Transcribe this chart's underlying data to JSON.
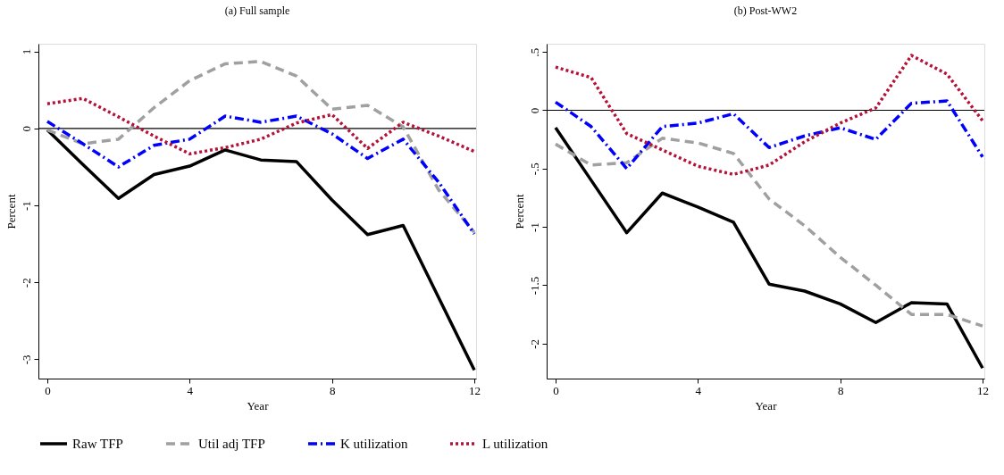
{
  "chart_data": [
    {
      "type": "line",
      "title": "(a) Full sample",
      "xlabel": "Year",
      "ylabel": "Percent",
      "xlim": [
        -0.25,
        12.05
      ],
      "xticks": [
        0,
        4,
        8,
        12
      ],
      "ylim": [
        -3.25,
        1.1
      ],
      "yticks": [
        1,
        0,
        -1,
        -2,
        -3
      ],
      "grid": false,
      "legend": "bottom",
      "marker": "none",
      "x": [
        0,
        1,
        2,
        3,
        4,
        5,
        6,
        7,
        8,
        9,
        10,
        11,
        12
      ],
      "ref_lines": [
        {
          "axis": "y",
          "value": 0,
          "color": "#000000",
          "line_style": "solid"
        }
      ],
      "series": [
        {
          "name": "Raw TFP",
          "color": "#000000",
          "line_style": "solid",
          "values": [
            -0.02,
            -0.47,
            -0.91,
            -0.6,
            -0.49,
            -0.28,
            -0.41,
            -0.43,
            -0.93,
            -1.38,
            -1.26,
            -2.2,
            -3.14
          ]
        },
        {
          "name": "Util adj TFP",
          "color": "#a0a0a0",
          "line_style": "dashed",
          "values": [
            -0.02,
            -0.2,
            -0.14,
            0.27,
            0.62,
            0.84,
            0.87,
            0.68,
            0.25,
            0.3,
            0.02,
            -0.8,
            -1.35
          ]
        },
        {
          "name": "K utilization",
          "color": "#0000ff",
          "line_style": "dashdot",
          "values": [
            0.09,
            -0.2,
            -0.5,
            -0.22,
            -0.14,
            0.16,
            0.08,
            0.16,
            -0.07,
            -0.39,
            -0.14,
            -0.7,
            -1.37
          ]
        },
        {
          "name": "L utilization",
          "color": "#b5123a",
          "line_style": "dotted",
          "values": [
            0.32,
            0.39,
            0.15,
            -0.1,
            -0.33,
            -0.25,
            -0.14,
            0.07,
            0.18,
            -0.26,
            0.08,
            -0.1,
            -0.3
          ]
        }
      ]
    },
    {
      "type": "line",
      "title": "(b) Post-WW2",
      "xlabel": "Year",
      "ylabel": "Percent",
      "xlim": [
        -0.25,
        12.05
      ],
      "xticks": [
        0,
        4,
        8,
        12
      ],
      "ylim": [
        -2.3,
        0.57
      ],
      "yticks": [
        {
          "value": 0.5,
          "label": ".5"
        },
        0,
        {
          "value": -0.5,
          "label": "-.5"
        },
        -1,
        {
          "value": -1.5,
          "label": "-1.5"
        },
        -2
      ],
      "grid": false,
      "legend": "bottom",
      "marker": "none",
      "x": [
        0,
        1,
        2,
        3,
        4,
        5,
        6,
        7,
        8,
        9,
        10,
        11,
        12
      ],
      "ref_lines": [
        {
          "axis": "y",
          "value": 0,
          "color": "#000000",
          "line_style": "solid"
        }
      ],
      "series": [
        {
          "name": "Raw TFP",
          "color": "#000000",
          "line_style": "solid",
          "values": [
            -0.15,
            -0.6,
            -1.05,
            -0.71,
            -0.83,
            -0.96,
            -1.49,
            -1.55,
            -1.66,
            -1.82,
            -1.65,
            -1.66,
            -2.21
          ]
        },
        {
          "name": "Util adj TFP",
          "color": "#a0a0a0",
          "line_style": "dashed",
          "values": [
            -0.29,
            -0.47,
            -0.45,
            -0.24,
            -0.28,
            -0.37,
            -0.76,
            -0.99,
            -1.26,
            -1.5,
            -1.75,
            -1.75,
            -1.85
          ]
        },
        {
          "name": "K utilization",
          "color": "#0000ff",
          "line_style": "dashdot",
          "values": [
            0.07,
            -0.14,
            -0.5,
            -0.14,
            -0.11,
            -0.03,
            -0.32,
            -0.22,
            -0.15,
            -0.25,
            0.06,
            0.08,
            -0.4
          ]
        },
        {
          "name": "L utilization",
          "color": "#b5123a",
          "line_style": "dotted",
          "values": [
            0.37,
            0.28,
            -0.2,
            -0.34,
            -0.48,
            -0.55,
            -0.47,
            -0.27,
            -0.11,
            0.02,
            0.47,
            0.31,
            -0.09
          ]
        }
      ]
    }
  ]
}
